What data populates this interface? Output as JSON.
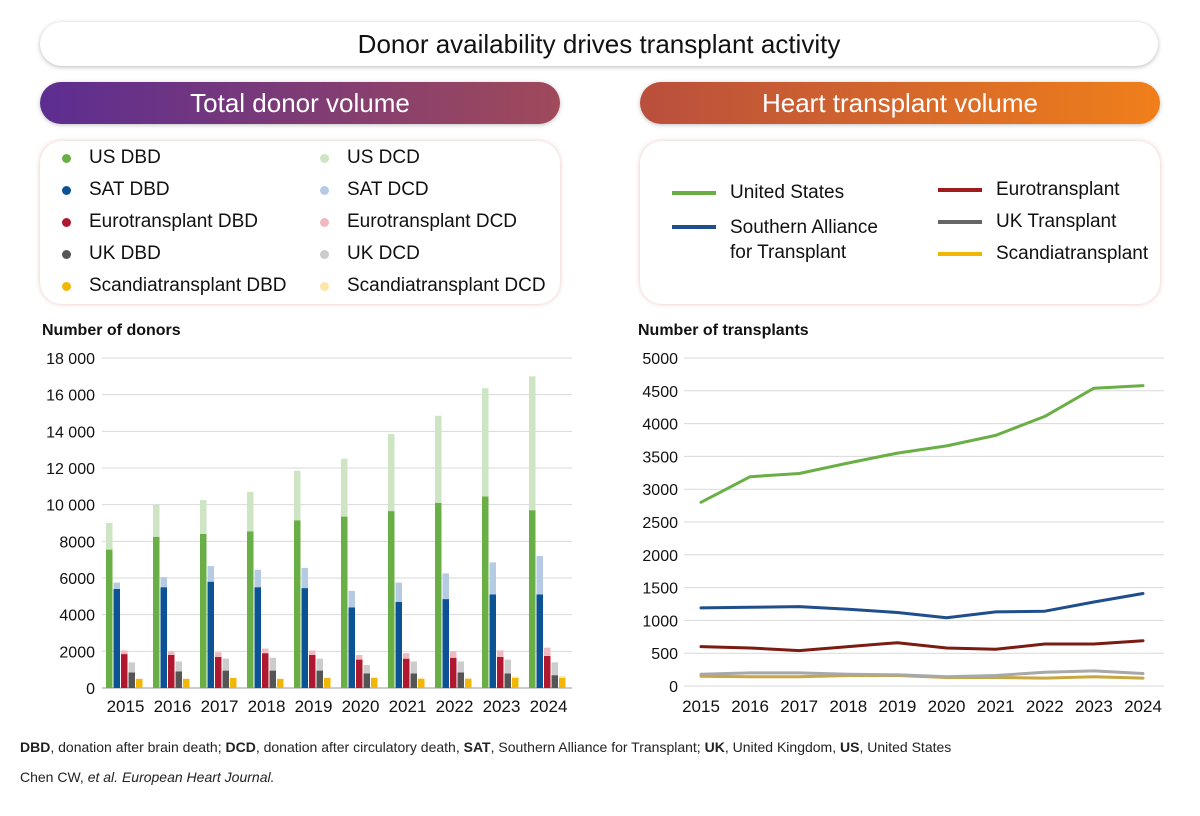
{
  "title": "Donor availability drives transplant activity",
  "left_header": "Total donor volume",
  "right_header": "Heart transplant volume",
  "donor_legend": [
    {
      "label": "US DBD",
      "color": "#6aaf45"
    },
    {
      "label": "SAT DBD",
      "color": "#0b5394"
    },
    {
      "label": "Eurotransplant DBD",
      "color": "#b0182f"
    },
    {
      "label": "UK DBD",
      "color": "#555555"
    },
    {
      "label": "Scandiatransplant DBD",
      "color": "#f2b705"
    },
    {
      "label": "US DCD",
      "color": "#cde5c2"
    },
    {
      "label": "SAT DCD",
      "color": "#b4cbe3"
    },
    {
      "label": "Eurotransplant DCD",
      "color": "#efb9c2"
    },
    {
      "label": "UK DCD",
      "color": "#cccccc"
    },
    {
      "label": "Scandiatransplant DCD",
      "color": "#fbe6a8"
    }
  ],
  "transplant_legend": [
    {
      "label": "United States",
      "label2": "",
      "color": "#6aaf45"
    },
    {
      "label": "Southern Alliance",
      "label2": "for Transplant",
      "color": "#1f4e8c"
    },
    {
      "label": "Eurotransplant",
      "label2": "",
      "color": "#a01c1c"
    },
    {
      "label": "UK Transplant",
      "label2": "",
      "color": "#666666"
    },
    {
      "label": "Scandiatransplant",
      "label2": "",
      "color": "#f2b705"
    }
  ],
  "footnote": {
    "parts": [
      {
        "b": "DBD",
        "t": ", donation after brain death; "
      },
      {
        "b": "DCD",
        "t": ", donation after circulatory death, "
      },
      {
        "b": "SAT",
        "t": ", Southern Alliance for Transplant; "
      },
      {
        "b": "UK",
        "t": ", United Kingdom, "
      },
      {
        "b": "US",
        "t": ", United States"
      }
    ],
    "citation_prefix": "Chen CW, ",
    "citation_italic": "et al. European Heart Journal."
  },
  "chart_data": [
    {
      "type": "bar",
      "title": "Total donor volume",
      "ylabel": "Number of donors",
      "xlabel": "",
      "ylim": [
        0,
        18000
      ],
      "yticks": [
        0,
        2000,
        4000,
        6000,
        8000,
        10000,
        12000,
        14000,
        16000,
        18000
      ],
      "ytick_labels": [
        "0",
        "2000",
        "4000",
        "6000",
        "8000",
        "10 000",
        "12 000",
        "14 000",
        "16 000",
        "18 000"
      ],
      "categories": [
        "2015",
        "2016",
        "2017",
        "2018",
        "2019",
        "2020",
        "2021",
        "2022",
        "2023",
        "2024"
      ],
      "stacked_pairs": true,
      "series": [
        {
          "name": "US DBD",
          "color": "#6aaf45",
          "values": [
            7550,
            8250,
            8400,
            8550,
            9150,
            9350,
            9650,
            10100,
            10450,
            9700
          ]
        },
        {
          "name": "US DCD",
          "color": "#cde5c2",
          "values": [
            1450,
            1750,
            1850,
            2150,
            2700,
            3150,
            4200,
            4750,
            5900,
            7300
          ]
        },
        {
          "name": "SAT DBD",
          "color": "#0b5394",
          "values": [
            5400,
            5500,
            5800,
            5500,
            5450,
            4400,
            4700,
            4850,
            5100,
            5100
          ]
        },
        {
          "name": "SAT DCD",
          "color": "#b4cbe3",
          "values": [
            350,
            550,
            850,
            950,
            1100,
            900,
            1050,
            1400,
            1750,
            2100
          ]
        },
        {
          "name": "Eurotransplant DBD",
          "color": "#b0182f",
          "values": [
            1850,
            1800,
            1700,
            1900,
            1800,
            1550,
            1600,
            1650,
            1700,
            1750
          ]
        },
        {
          "name": "Eurotransplant DCD",
          "color": "#efb9c2",
          "values": [
            200,
            200,
            250,
            250,
            250,
            250,
            300,
            350,
            350,
            450
          ]
        },
        {
          "name": "UK DBD",
          "color": "#555555",
          "values": [
            850,
            900,
            950,
            950,
            950,
            800,
            800,
            850,
            800,
            700
          ]
        },
        {
          "name": "UK DCD",
          "color": "#cccccc",
          "values": [
            550,
            550,
            650,
            700,
            650,
            450,
            650,
            600,
            750,
            700
          ]
        },
        {
          "name": "Scandiatransplant DBD",
          "color": "#f2b705",
          "values": [
            500,
            500,
            550,
            500,
            550,
            550,
            500,
            500,
            550,
            550
          ]
        },
        {
          "name": "Scandiatransplant DCD",
          "color": "#fbe6a8",
          "values": [
            0,
            0,
            0,
            0,
            20,
            40,
            50,
            60,
            80,
            100
          ]
        }
      ]
    },
    {
      "type": "line",
      "title": "Heart transplant volume",
      "ylabel": "Number of transplants",
      "xlabel": "",
      "ylim": [
        0,
        5000
      ],
      "yticks": [
        0,
        500,
        1000,
        1500,
        2000,
        2500,
        3000,
        3500,
        4000,
        4500,
        5000
      ],
      "ytick_labels": [
        "0",
        "500",
        "1000",
        "1500",
        "2000",
        "2500",
        "3000",
        "3500",
        "4000",
        "4500",
        "5000"
      ],
      "x": [
        "2015",
        "2016",
        "2017",
        "2018",
        "2019",
        "2020",
        "2021",
        "2022",
        "2023",
        "2024"
      ],
      "series": [
        {
          "name": "United States",
          "color": "#6aaf45",
          "values": [
            2800,
            3190,
            3240,
            3400,
            3550,
            3660,
            3820,
            4110,
            4540,
            4580
          ]
        },
        {
          "name": "Southern Alliance for Transplant",
          "color": "#1f4e8c",
          "values": [
            1190,
            1200,
            1210,
            1170,
            1120,
            1040,
            1130,
            1140,
            1280,
            1410
          ]
        },
        {
          "name": "Eurotransplant",
          "color": "#7a1c12",
          "values": [
            600,
            580,
            540,
            600,
            660,
            580,
            560,
            640,
            640,
            690
          ]
        },
        {
          "name": "UK Transplant",
          "color": "#a8a8a8",
          "values": [
            180,
            200,
            200,
            180,
            170,
            140,
            160,
            210,
            230,
            190
          ]
        },
        {
          "name": "Scandiatransplant",
          "color": "#c8a640",
          "values": [
            150,
            140,
            140,
            160,
            160,
            130,
            130,
            120,
            140,
            120
          ]
        }
      ]
    }
  ]
}
